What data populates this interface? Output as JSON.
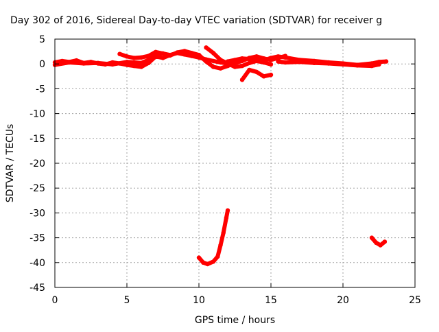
{
  "chart_data": {
    "type": "scatter",
    "title": "Day 302 of 2016, Sidereal Day-to-day VTEC variation (SDTVAR) for receiver g",
    "xlabel": "GPS time / hours",
    "ylabel": "SDTVAR / TECUs",
    "xlim": [
      0,
      25
    ],
    "ylim": [
      -45,
      5
    ],
    "x_ticks": [
      0,
      5,
      10,
      15,
      20,
      25
    ],
    "y_ticks": [
      5,
      0,
      -5,
      -10,
      -15,
      -20,
      -25,
      -30,
      -35,
      -40,
      -45
    ],
    "x_tick_labels": [
      "0",
      "5",
      "10",
      "15",
      "20",
      "25"
    ],
    "y_tick_labels": [
      "5",
      "0",
      "-5",
      "-10",
      "-15",
      "-20",
      "-25",
      "-30",
      "-35",
      "-40",
      "-45"
    ],
    "grid": true,
    "legend": "none",
    "color": "#ff0000",
    "series": [
      {
        "x": [
          0,
          0.5,
          1,
          1.5,
          2,
          2.5,
          3,
          3.5,
          4,
          4.5,
          5,
          5.5,
          6,
          6.5,
          7,
          7.5,
          8,
          8.5,
          9,
          9.5,
          10,
          10.5,
          11,
          11.5,
          12
        ],
        "y": [
          0.3,
          0.6,
          0.4,
          0.7,
          0.2,
          0.4,
          0.1,
          -0.1,
          0.3,
          0.1,
          -0.2,
          -0.4,
          -0.6,
          0.2,
          1.5,
          1.2,
          1.8,
          2.2,
          1.9,
          1.6,
          1.3,
          0.9,
          0.6,
          0.3,
          0.1
        ]
      },
      {
        "x": [
          0,
          1,
          2,
          3,
          4,
          5,
          6,
          6.5,
          7,
          7.5,
          8,
          8.5,
          9,
          9.5,
          10
        ],
        "y": [
          -0.2,
          0.3,
          0.1,
          0.2,
          -0.1,
          0.4,
          0.2,
          0.8,
          1.9,
          2.1,
          1.7,
          2.3,
          2.6,
          2.2,
          1.8
        ]
      },
      {
        "x": [
          4.5,
          5,
          5.5,
          6,
          6.5,
          7,
          7.5,
          8
        ],
        "y": [
          2,
          1.5,
          1.2,
          1.3,
          1.6,
          2.4,
          2.1,
          1.8
        ]
      },
      {
        "x": [
          10,
          10.5,
          11,
          11.5,
          12,
          12.5,
          13,
          13.5,
          14,
          14.5,
          15,
          15.5,
          16
        ],
        "y": [
          1.8,
          0.5,
          -0.6,
          -0.9,
          -0.4,
          0.2,
          0.6,
          1.2,
          1.5,
          1.1,
          0.8,
          1.2,
          1.6
        ]
      },
      {
        "x": [
          10.5,
          11,
          11.5,
          12,
          12.5,
          13,
          13.5,
          14,
          14.5,
          15
        ],
        "y": [
          3.3,
          2.2,
          0.8,
          0.1,
          -0.6,
          -0.4,
          0.2,
          0.6,
          0.3,
          -0.1
        ]
      },
      {
        "x": [
          13,
          13.5,
          14,
          14.5,
          15
        ],
        "y": [
          -3.2,
          -1.2,
          -1.6,
          -2.5,
          -2.2
        ]
      },
      {
        "x": [
          12,
          12.5,
          13,
          13.5,
          14,
          14.5,
          15,
          15.5,
          16,
          17,
          18,
          19,
          20,
          21,
          22,
          22.5,
          23
        ],
        "y": [
          0.5,
          0.8,
          1.1,
          1.0,
          0.9,
          0.7,
          1.2,
          1.5,
          1.3,
          0.8,
          0.6,
          0.3,
          0.1,
          -0.2,
          0.1,
          0.4,
          0.5
        ]
      },
      {
        "x": [
          15.5,
          16,
          17,
          18,
          19,
          20,
          21,
          22,
          22.5
        ],
        "y": [
          0.5,
          0.3,
          0.4,
          0.2,
          0.1,
          -0.1,
          -0.3,
          -0.4,
          -0.1
        ]
      },
      {
        "x": [
          10,
          10.3,
          10.6,
          11,
          11.3,
          11.5,
          11.7,
          11.9,
          12
        ],
        "y": [
          -39,
          -40,
          -40.3,
          -39.8,
          -38.8,
          -36.5,
          -34,
          -31,
          -29.5
        ]
      },
      {
        "x": [
          22,
          22.3,
          22.6,
          22.9
        ],
        "y": [
          -35,
          -36,
          -36.5,
          -35.8
        ]
      }
    ]
  }
}
